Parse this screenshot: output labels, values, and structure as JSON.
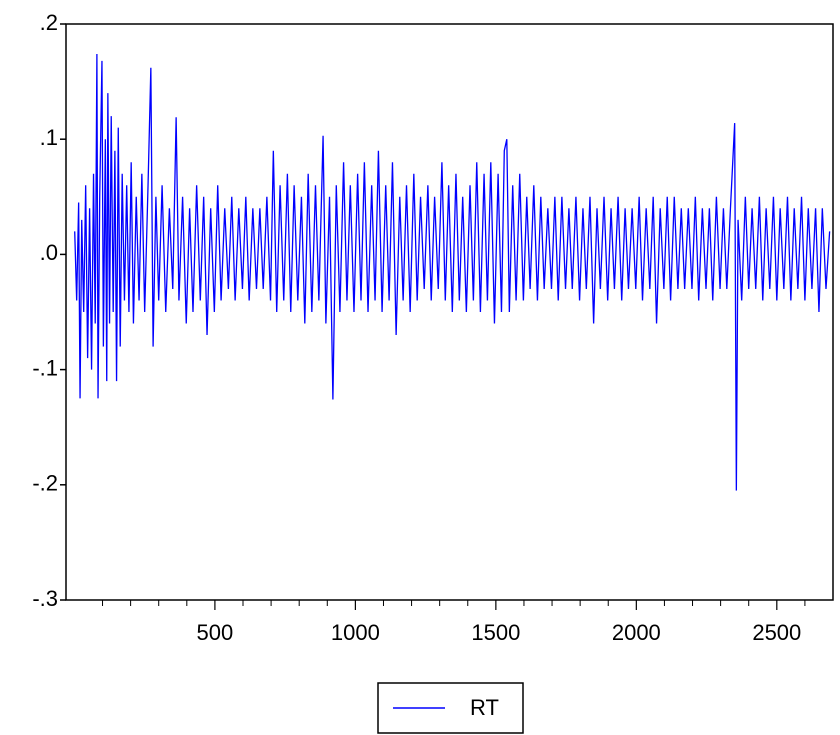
{
  "chart_data": {
    "type": "line",
    "x": [
      1,
      8,
      15,
      20,
      26,
      33,
      40,
      47,
      54,
      61,
      68,
      74,
      80,
      84,
      90,
      98,
      103,
      110,
      115,
      119,
      125,
      131,
      138,
      144,
      150,
      156,
      163,
      170,
      178,
      186,
      194,
      202,
      210,
      220,
      230,
      240,
      250,
      262,
      272,
      280,
      290,
      300,
      312,
      325,
      338,
      350,
      362,
      372,
      385,
      398,
      410,
      422,
      435,
      448,
      460,
      472,
      485,
      498,
      510,
      522,
      535,
      548,
      560,
      572,
      585,
      598,
      610,
      622,
      635,
      648,
      660,
      672,
      685,
      698,
      708,
      720,
      732,
      745,
      758,
      770,
      782,
      795,
      808,
      820,
      832,
      845,
      858,
      870,
      885,
      895,
      908,
      920,
      932,
      945,
      958,
      970,
      982,
      995,
      1008,
      1020,
      1032,
      1045,
      1058,
      1070,
      1082,
      1095,
      1108,
      1120,
      1132,
      1145,
      1158,
      1170,
      1182,
      1195,
      1208,
      1220,
      1232,
      1245,
      1258,
      1270,
      1282,
      1295,
      1308,
      1320,
      1332,
      1345,
      1358,
      1370,
      1382,
      1395,
      1408,
      1420,
      1432,
      1445,
      1458,
      1470,
      1482,
      1495,
      1508,
      1520,
      1530,
      1539,
      1548,
      1560,
      1572,
      1585,
      1598,
      1610,
      1622,
      1635,
      1648,
      1660,
      1672,
      1685,
      1698,
      1710,
      1722,
      1735,
      1748,
      1760,
      1772,
      1785,
      1798,
      1810,
      1822,
      1835,
      1848,
      1860,
      1872,
      1885,
      1898,
      1910,
      1922,
      1935,
      1948,
      1960,
      1972,
      1985,
      1998,
      2010,
      2022,
      2035,
      2048,
      2060,
      2072,
      2085,
      2098,
      2110,
      2122,
      2135,
      2148,
      2160,
      2172,
      2185,
      2198,
      2210,
      2222,
      2235,
      2248,
      2260,
      2272,
      2285,
      2298,
      2310,
      2322,
      2335,
      2350,
      2356,
      2362,
      2375,
      2388,
      2400,
      2412,
      2425,
      2438,
      2450,
      2462,
      2475,
      2488,
      2500,
      2512,
      2525,
      2538,
      2550,
      2562,
      2575,
      2588,
      2600,
      2612,
      2625,
      2638,
      2650,
      2662,
      2675,
      2688
    ],
    "series": [
      {
        "name": "RT",
        "color": "#0000ff",
        "values": [
          0.02,
          -0.04,
          0.045,
          -0.125,
          0.03,
          -0.05,
          0.06,
          -0.09,
          0.04,
          -0.1,
          0.07,
          -0.06,
          0.174,
          -0.125,
          0.05,
          0.168,
          -0.08,
          0.1,
          -0.11,
          0.14,
          -0.06,
          0.12,
          -0.05,
          0.09,
          -0.11,
          0.11,
          -0.08,
          0.07,
          -0.04,
          0.06,
          -0.05,
          0.08,
          -0.06,
          0.05,
          -0.04,
          0.07,
          -0.05,
          0.06,
          0.162,
          -0.08,
          0.05,
          -0.04,
          0.06,
          -0.05,
          0.04,
          -0.03,
          0.119,
          -0.04,
          0.05,
          -0.06,
          0.04,
          -0.05,
          0.06,
          -0.04,
          0.05,
          -0.07,
          0.04,
          -0.05,
          0.06,
          -0.04,
          0.04,
          -0.03,
          0.05,
          -0.04,
          0.04,
          -0.03,
          0.05,
          -0.04,
          0.04,
          -0.03,
          0.04,
          -0.03,
          0.05,
          -0.04,
          0.09,
          -0.05,
          0.06,
          -0.04,
          0.07,
          -0.05,
          0.06,
          -0.04,
          0.05,
          -0.06,
          0.07,
          -0.05,
          0.06,
          -0.04,
          0.103,
          -0.06,
          0.05,
          -0.126,
          0.06,
          -0.05,
          0.08,
          -0.04,
          0.06,
          -0.05,
          0.07,
          -0.04,
          0.08,
          -0.05,
          0.06,
          -0.04,
          0.09,
          -0.05,
          0.06,
          -0.04,
          0.08,
          -0.07,
          0.05,
          -0.04,
          0.06,
          -0.05,
          0.07,
          -0.04,
          0.05,
          -0.03,
          0.06,
          -0.04,
          0.05,
          -0.03,
          0.08,
          -0.04,
          0.06,
          -0.05,
          0.07,
          -0.04,
          0.05,
          -0.05,
          0.06,
          -0.04,
          0.08,
          -0.05,
          0.07,
          -0.04,
          0.08,
          -0.06,
          0.07,
          -0.05,
          0.09,
          0.1,
          -0.05,
          0.06,
          -0.04,
          0.07,
          -0.04,
          0.05,
          -0.03,
          0.06,
          -0.04,
          0.05,
          -0.03,
          0.04,
          -0.03,
          0.05,
          -0.04,
          0.05,
          -0.03,
          0.04,
          -0.03,
          0.05,
          -0.04,
          0.04,
          -0.03,
          0.05,
          -0.06,
          0.04,
          -0.03,
          0.05,
          -0.04,
          0.04,
          -0.03,
          0.05,
          -0.04,
          0.04,
          -0.03,
          0.04,
          -0.03,
          0.05,
          -0.04,
          0.04,
          -0.03,
          0.05,
          -0.06,
          0.04,
          -0.03,
          0.05,
          -0.04,
          0.05,
          -0.03,
          0.04,
          -0.03,
          0.04,
          -0.03,
          0.05,
          -0.04,
          0.04,
          -0.03,
          0.04,
          -0.04,
          0.05,
          -0.03,
          0.04,
          -0.03,
          0.04,
          0.114,
          -0.205,
          0.03,
          -0.04,
          0.05,
          -0.03,
          0.04,
          -0.03,
          0.05,
          -0.04,
          0.04,
          -0.03,
          0.05,
          -0.04,
          0.04,
          -0.03,
          0.05,
          -0.04,
          0.04,
          -0.03,
          0.05,
          -0.04,
          0.04,
          -0.03,
          0.04,
          -0.05,
          0.04,
          -0.03,
          0.02
        ]
      }
    ],
    "xlim": [
      -30,
      2700
    ],
    "xticks": [
      500,
      1000,
      1500,
      2000,
      2500
    ],
    "xminorticks": [
      100,
      200,
      300,
      400,
      600,
      700,
      800,
      900,
      1100,
      1200,
      1300,
      1400,
      1600,
      1700,
      1800,
      1900,
      2100,
      2200,
      2300,
      2400,
      2600
    ],
    "ylim": [
      -0.3,
      0.2
    ],
    "yticks": [
      {
        "value": -0.3,
        "label": "-.3"
      },
      {
        "value": -0.2,
        "label": "-.2"
      },
      {
        "value": -0.1,
        "label": "-.1"
      },
      {
        "value": 0,
        "label": ".0"
      },
      {
        "value": 0.1,
        "label": ".1"
      },
      {
        "value": 0.2,
        "label": ".2"
      }
    ],
    "legend": "bottom"
  }
}
